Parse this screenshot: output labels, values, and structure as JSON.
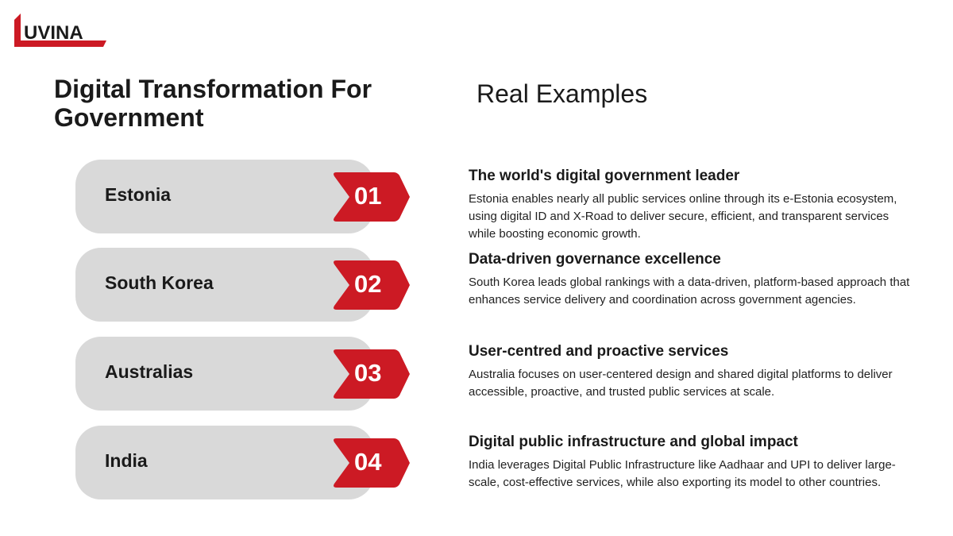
{
  "logo": {
    "text": "UVINA",
    "brand_color": "#cc1a24"
  },
  "title": "Digital Transformation For Government",
  "subtitle": "Real Examples",
  "examples": [
    {
      "country": "Estonia",
      "number": "01",
      "heading": "The world's digital government leader",
      "text": "Estonia enables nearly all public services online through its e-Estonia ecosystem, using digital ID and X-Road to deliver secure, efficient, and transparent services while boosting economic growth."
    },
    {
      "country": "South Korea",
      "number": "02",
      "heading": "Data-driven governance excellence",
      "text": "South Korea leads global rankings with a data-driven, platform-based approach that enhances service delivery and coordination across government agencies."
    },
    {
      "country": "Australias",
      "number": "03",
      "heading": "User-centred and proactive services",
      "text": "Australia focuses on user-centered design and shared digital platforms to deliver accessible, proactive, and trusted public services at scale."
    },
    {
      "country": "India",
      "number": "04",
      "heading": "Digital public infrastructure and global impact",
      "text": "India leverages Digital Public Infrastructure like Aadhaar and UPI to deliver large-scale, cost-effective services, while also exporting its model to other countries."
    }
  ]
}
